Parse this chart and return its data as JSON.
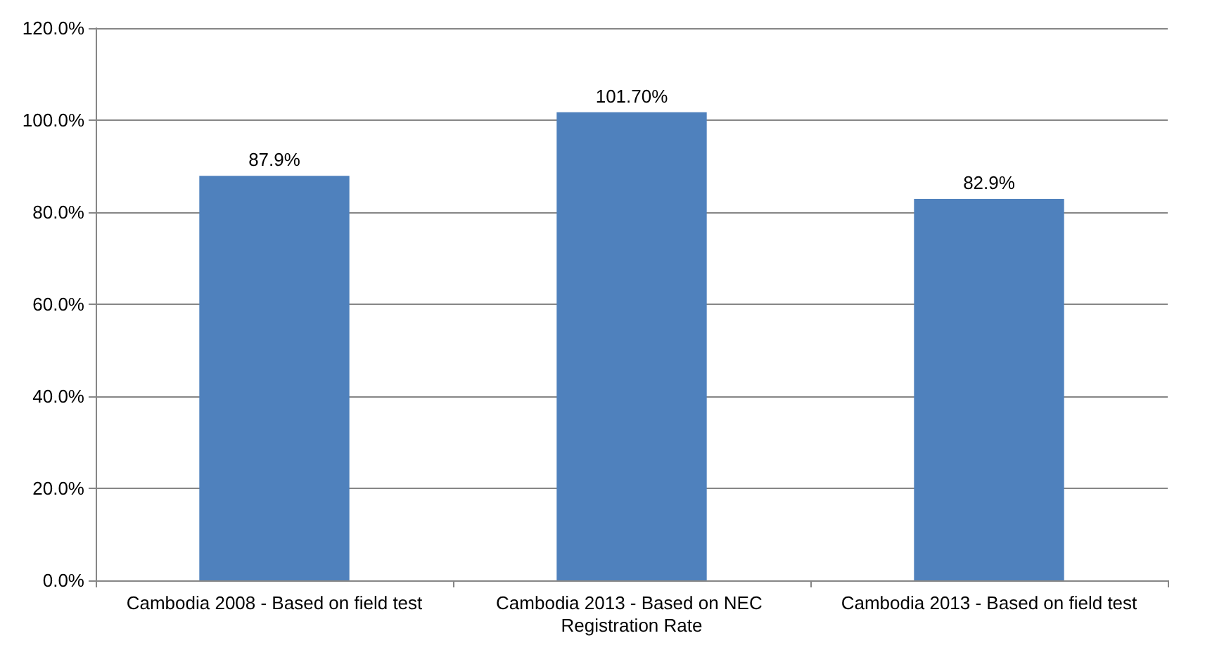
{
  "chart_data": {
    "type": "bar",
    "categories": [
      "Cambodia 2008 - Based on field test",
      "Cambodia 2013 - Based on NEC Registration Rate",
      "Cambodia 2013 - Based on field test"
    ],
    "values": [
      87.9,
      101.7,
      82.9
    ],
    "value_labels": [
      "87.9%",
      "101.70%",
      "82.9%"
    ],
    "color": "#4f81bd",
    "ylim": [
      0,
      120
    ],
    "yticks": [
      {
        "value": 0,
        "label": "0.0%"
      },
      {
        "value": 20,
        "label": "20.0%"
      },
      {
        "value": 40,
        "label": "40.0%"
      },
      {
        "value": 60,
        "label": "60.0%"
      },
      {
        "value": 80,
        "label": "80.0%"
      },
      {
        "value": 100,
        "label": "100.0%"
      },
      {
        "value": 120,
        "label": "120.0%"
      }
    ],
    "grid": "y"
  }
}
